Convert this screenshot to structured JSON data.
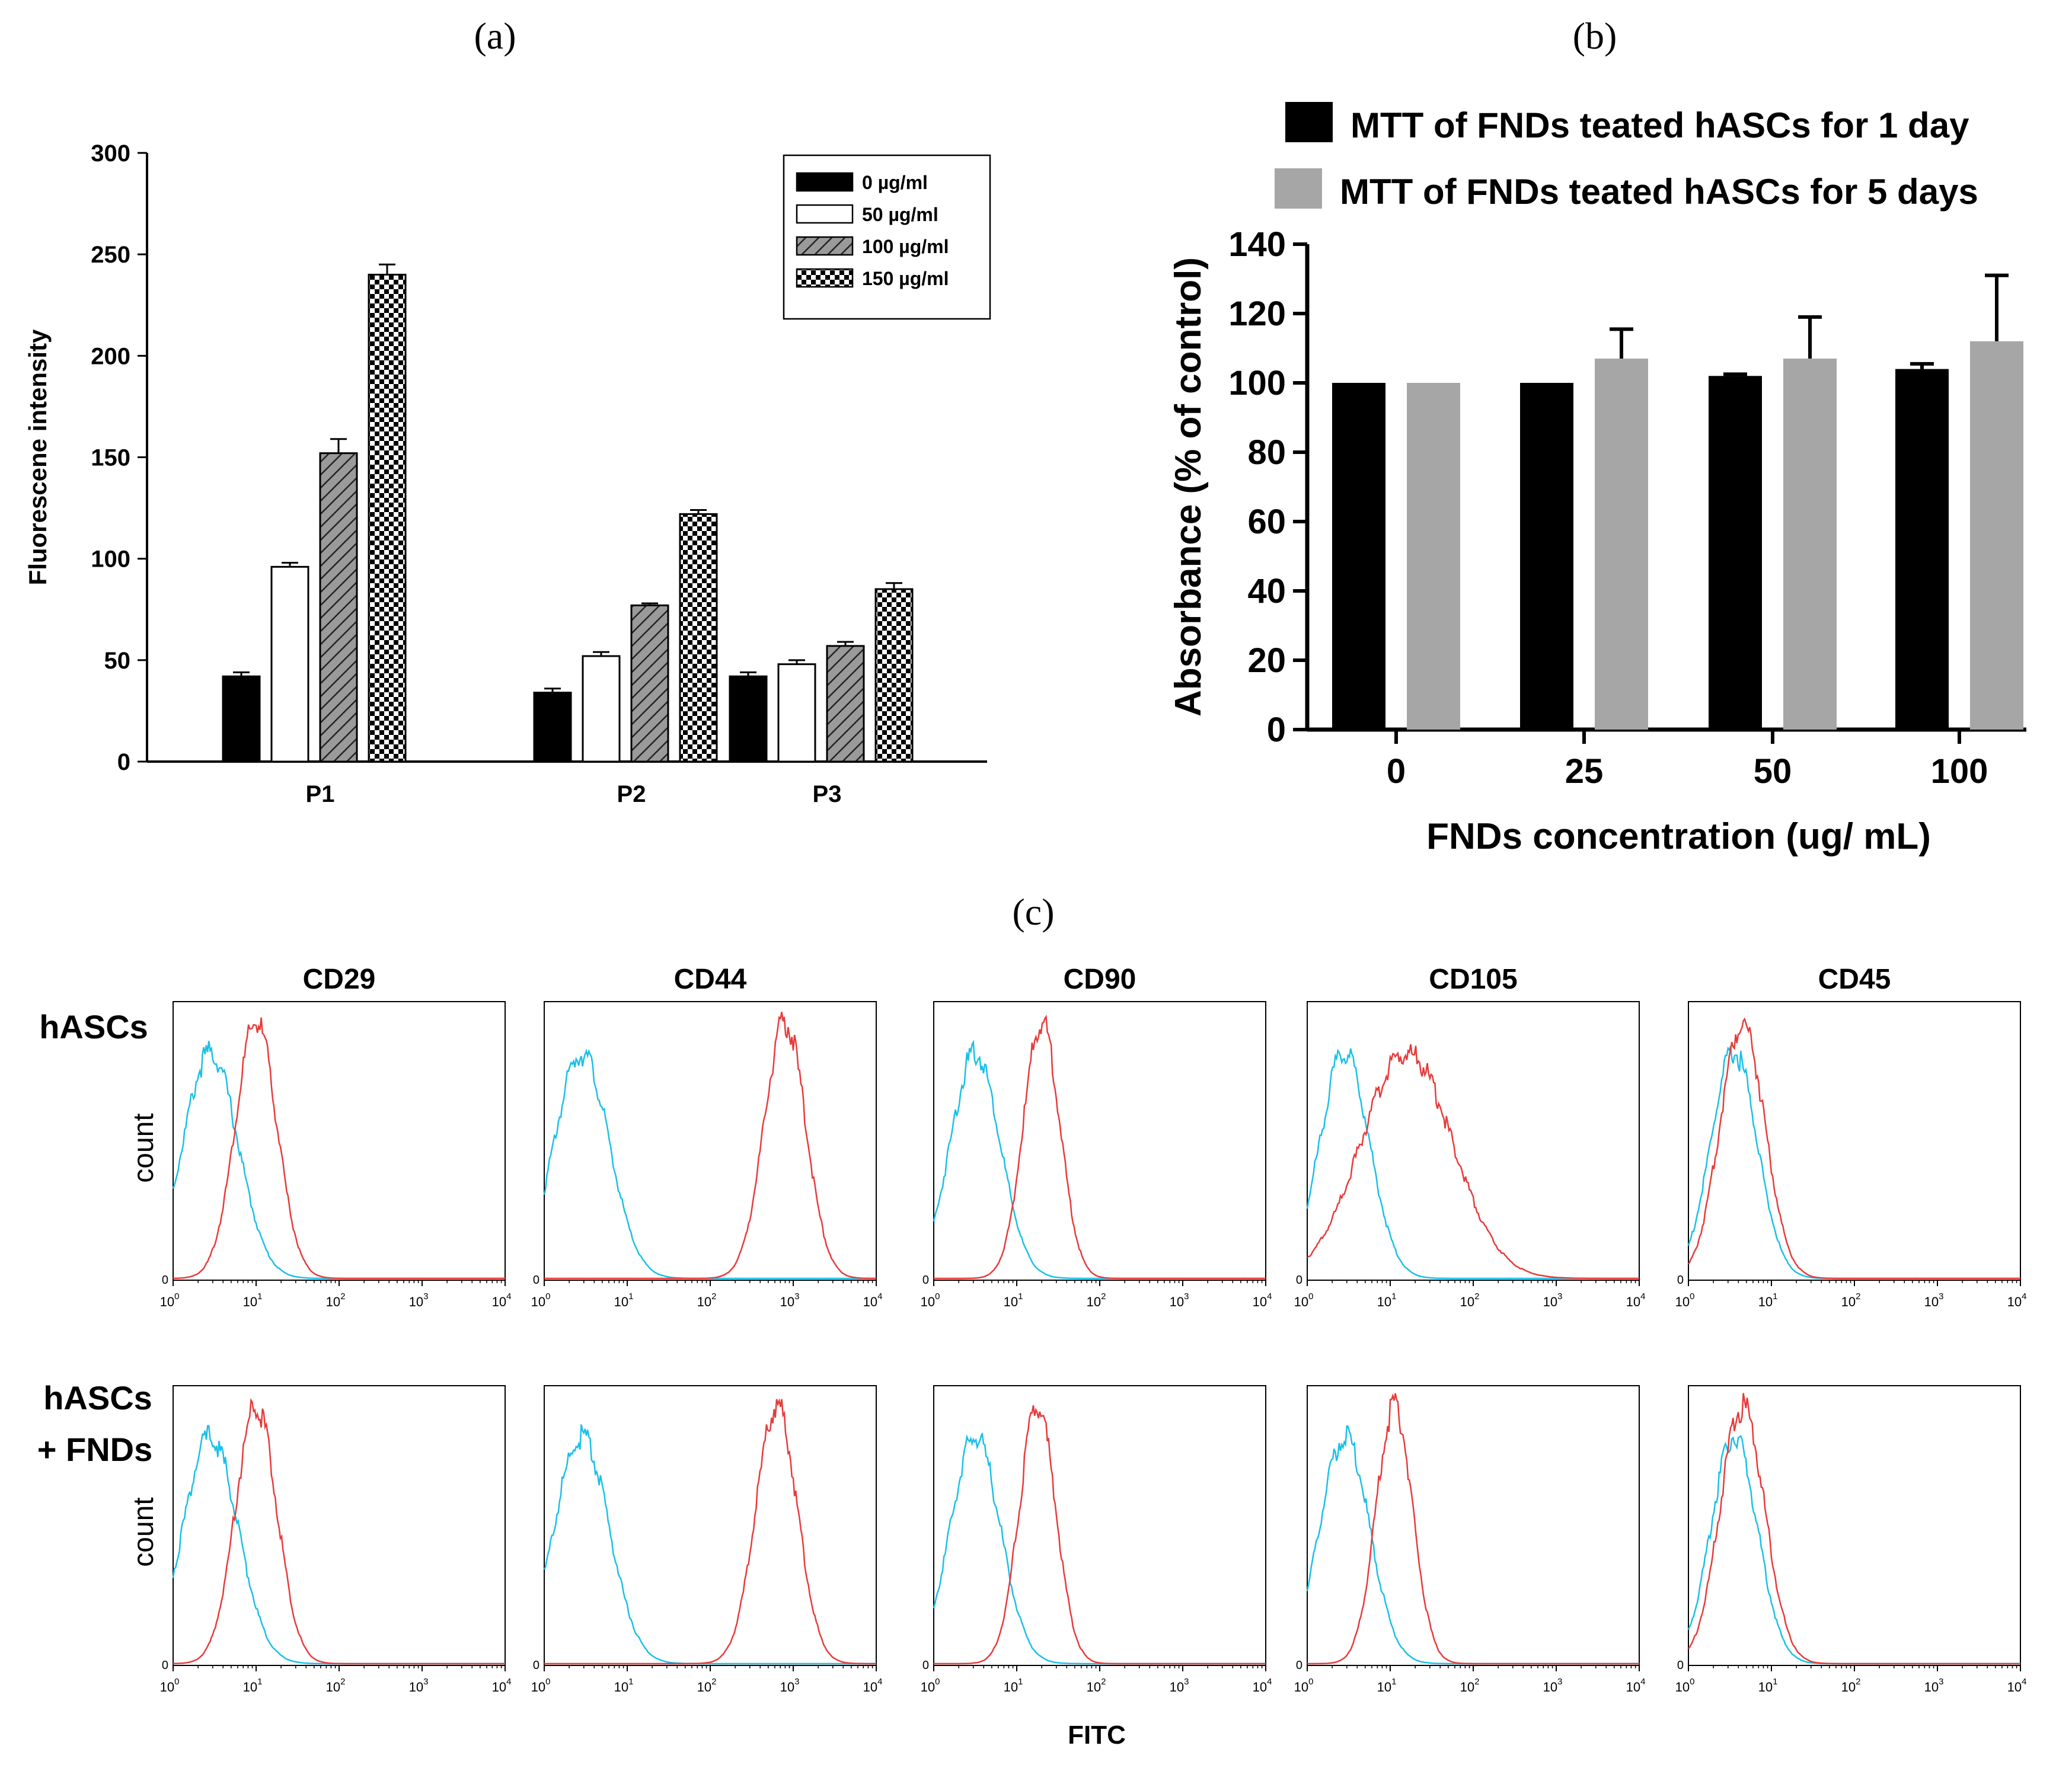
{
  "panel_labels": {
    "a": "(a)",
    "b": "(b)",
    "c": "(c)"
  },
  "chart_data": [
    {
      "panel": "a",
      "type": "bar",
      "title": "",
      "xlabel": "",
      "ylabel": "Fluorescene intensity",
      "ylim": [
        0,
        300
      ],
      "yticks": [
        "0",
        "50",
        "100",
        "150",
        "200",
        "250",
        "300"
      ],
      "categories": [
        "P1",
        "P2",
        "P3"
      ],
      "legend_position": "top-right",
      "series": [
        {
          "name": "0 µg/ml",
          "fill": "black",
          "values": [
            42,
            34,
            42
          ],
          "errors": [
            2,
            2,
            2
          ]
        },
        {
          "name": "50 µg/ml",
          "fill": "white",
          "values": [
            96,
            52,
            48
          ],
          "errors": [
            2,
            2,
            2
          ]
        },
        {
          "name": "100 µg/ml",
          "fill": "hatch",
          "values": [
            152,
            77,
            57
          ],
          "errors": [
            7,
            1,
            2
          ]
        },
        {
          "name": "150 µg/ml",
          "fill": "checker",
          "values": [
            240,
            122,
            85
          ],
          "errors": [
            5,
            2,
            3
          ]
        }
      ]
    },
    {
      "panel": "b",
      "type": "bar",
      "title": "",
      "xlabel": "FNDs concentration (ug/ mL)",
      "ylabel": "Absorbance (% of control)",
      "ylim": [
        0,
        140
      ],
      "yticks": [
        "0",
        "20",
        "40",
        "60",
        "80",
        "100",
        "120",
        "140"
      ],
      "categories": [
        "0",
        "25",
        "50",
        "100"
      ],
      "legend_position": "top",
      "series": [
        {
          "name": "MTT of FNDs teated hASCs for 1 day",
          "color": "#000000",
          "values": [
            100,
            100,
            102,
            104
          ],
          "errors": [
            0,
            0,
            0.5,
            1.5
          ]
        },
        {
          "name": "MTT of FNDs teated hASCs for 5 days",
          "color": "#a6a6a6",
          "values": [
            100,
            107,
            107,
            112
          ],
          "errors": [
            0,
            8.5,
            12,
            19
          ]
        }
      ]
    },
    {
      "panel": "c",
      "type": "line",
      "title": "",
      "xlabel": "FITC",
      "ylabel": "count",
      "columns": [
        "CD29",
        "CD44",
        "CD90",
        "CD105",
        "CD45"
      ],
      "rows": [
        "hASCs",
        "hASCs + FNDs"
      ],
      "x_scale": "log10",
      "xlim": [
        0,
        4
      ],
      "xtick_base": "10",
      "xtick_exponents": [
        "0",
        "1",
        "2",
        "3",
        "4"
      ],
      "y_zero_label": "0",
      "control_color": "#19c0e8",
      "stained_color": "#e83a3a",
      "peaks": [
        [
          {
            "control_log": 0.45,
            "control_width": 0.33,
            "stained_log": 1.0,
            "stained_width": 0.25,
            "stained_height": 1.0,
            "control_height": 0.88
          },
          {
            "control_log": 0.45,
            "control_width": 0.33,
            "stained_log": 2.9,
            "stained_width": 0.25,
            "stained_height": 1.0,
            "control_height": 0.88
          },
          {
            "control_log": 0.5,
            "control_width": 0.3,
            "stained_log": 1.3,
            "stained_width": 0.22,
            "stained_height": 1.0,
            "control_height": 0.88
          },
          {
            "control_log": 0.45,
            "control_width": 0.3,
            "stained_log": 1.2,
            "stained_width": 0.55,
            "stained_height": 0.88,
            "control_height": 0.88
          },
          {
            "control_log": 0.55,
            "control_width": 0.28,
            "stained_log": 0.65,
            "stained_width": 0.27,
            "stained_height": 1.0,
            "control_height": 0.88
          }
        ],
        [
          {
            "control_log": 0.45,
            "control_width": 0.33,
            "stained_log": 1.0,
            "stained_width": 0.25,
            "stained_height": 1.0,
            "control_height": 0.88
          },
          {
            "control_log": 0.45,
            "control_width": 0.33,
            "stained_log": 2.8,
            "stained_width": 0.25,
            "stained_height": 1.0,
            "control_height": 0.88
          },
          {
            "control_log": 0.5,
            "control_width": 0.3,
            "stained_log": 1.25,
            "stained_width": 0.22,
            "stained_height": 1.0,
            "control_height": 0.88
          },
          {
            "control_log": 0.45,
            "control_width": 0.3,
            "stained_log": 1.05,
            "stained_width": 0.22,
            "stained_height": 1.0,
            "control_height": 0.88
          },
          {
            "control_log": 0.55,
            "control_width": 0.28,
            "stained_log": 0.65,
            "stained_width": 0.27,
            "stained_height": 1.0,
            "control_height": 0.88
          }
        ]
      ]
    }
  ]
}
